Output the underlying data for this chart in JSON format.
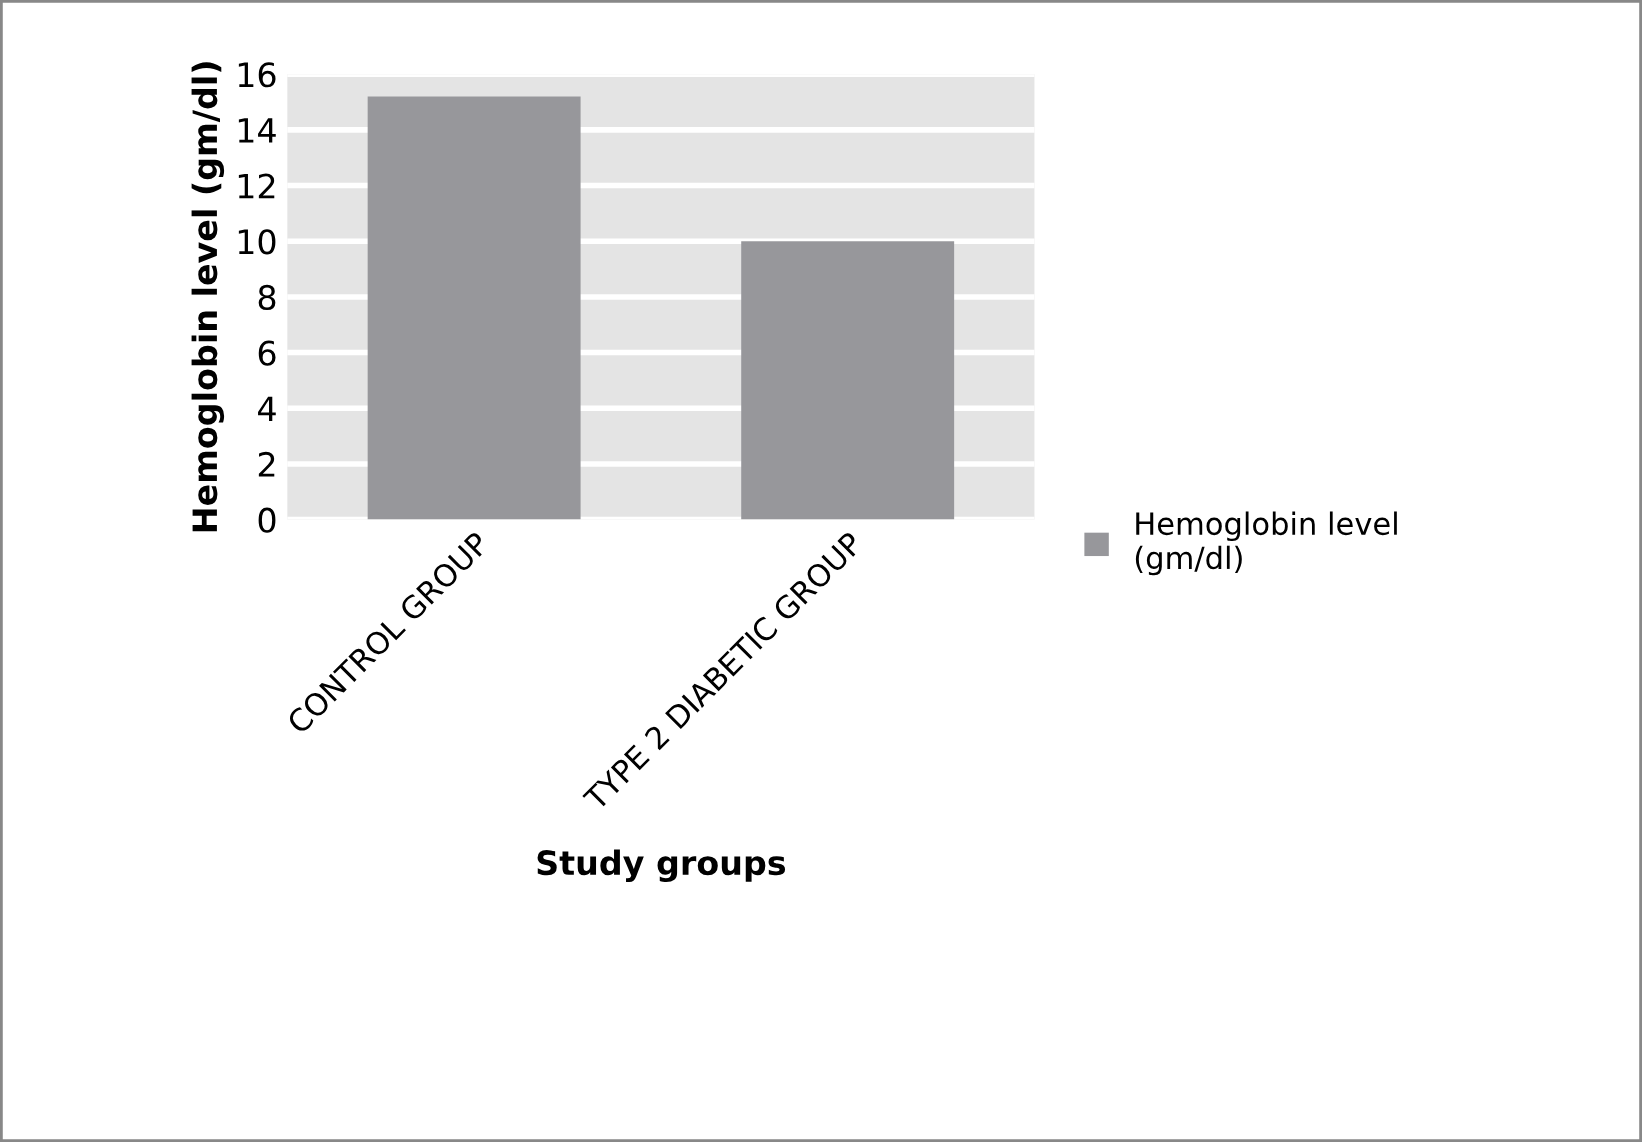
{
  "chart_data": {
    "type": "bar",
    "xlabel": "Study groups",
    "ylabel": "Hemoglobin level (gm/dl)",
    "categories": [
      "CONTROL GROUP",
      "TYPE 2 DIABETIC GROUP"
    ],
    "series": [
      {
        "name": "Hemoglobin level (gm/dl)",
        "color": "#97979b",
        "values": [
          15.2,
          10.0
        ]
      }
    ],
    "ylim": [
      0,
      16
    ],
    "yticks": [
      0,
      2,
      4,
      6,
      8,
      10,
      12,
      14,
      16
    ],
    "grid": "y",
    "legend": "right"
  }
}
